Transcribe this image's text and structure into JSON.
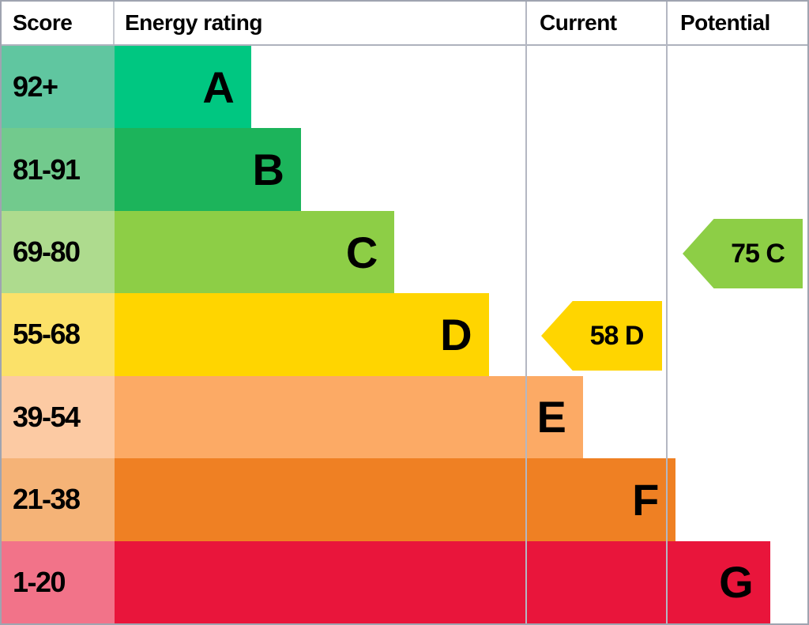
{
  "header": {
    "score": "Score",
    "energy_rating": "Energy rating",
    "current": "Current",
    "potential": "Potential"
  },
  "bands": [
    {
      "letter": "A",
      "score": "92+",
      "bar_color": "#00c781",
      "score_bg": "#60c6a0",
      "width_pct": 19.7
    },
    {
      "letter": "B",
      "score": "81-91",
      "bar_color": "#1cb45b",
      "score_bg": "#72ca8d",
      "width_pct": 26.9
    },
    {
      "letter": "C",
      "score": "69-80",
      "bar_color": "#8dce46",
      "score_bg": "#aedb8e",
      "width_pct": 40.4
    },
    {
      "letter": "D",
      "score": "55-68",
      "bar_color": "#ffd500",
      "score_bg": "#fbe169",
      "width_pct": 54.0
    },
    {
      "letter": "E",
      "score": "39-54",
      "bar_color": "#fcaa65",
      "score_bg": "#fccaa3",
      "width_pct": 67.6
    },
    {
      "letter": "F",
      "score": "21-38",
      "bar_color": "#ef8023",
      "score_bg": "#f5b377",
      "width_pct": 81.0
    },
    {
      "letter": "G",
      "score": "1-20",
      "bar_color": "#e9153b",
      "score_bg": "#f27389",
      "width_pct": 94.6
    }
  ],
  "current": {
    "label": "58 D",
    "value": 58,
    "band": "D",
    "color": "#ffd500"
  },
  "potential": {
    "label": "75 C",
    "value": 75,
    "band": "C",
    "color": "#8dce46"
  },
  "chart_data": {
    "type": "bar",
    "title": "Energy rating",
    "columns": [
      "Score",
      "Energy rating",
      "Current",
      "Potential"
    ],
    "categories": [
      "A",
      "B",
      "C",
      "D",
      "E",
      "F",
      "G"
    ],
    "score_ranges": [
      "92+",
      "81-91",
      "69-80",
      "55-68",
      "39-54",
      "21-38",
      "1-20"
    ],
    "band_colors": [
      "#00c781",
      "#1cb45b",
      "#8dce46",
      "#ffd500",
      "#fcaa65",
      "#ef8023",
      "#e9153b"
    ],
    "bar_relative_lengths": [
      0.2,
      0.27,
      0.4,
      0.54,
      0.68,
      0.81,
      0.95
    ],
    "markers": [
      {
        "column": "Current",
        "score": 58,
        "rating": "D",
        "label": "58 D",
        "color": "#ffd500"
      },
      {
        "column": "Potential",
        "score": 75,
        "rating": "C",
        "label": "75 C",
        "color": "#8dce46"
      }
    ],
    "legend_position": "none",
    "grid": false
  }
}
